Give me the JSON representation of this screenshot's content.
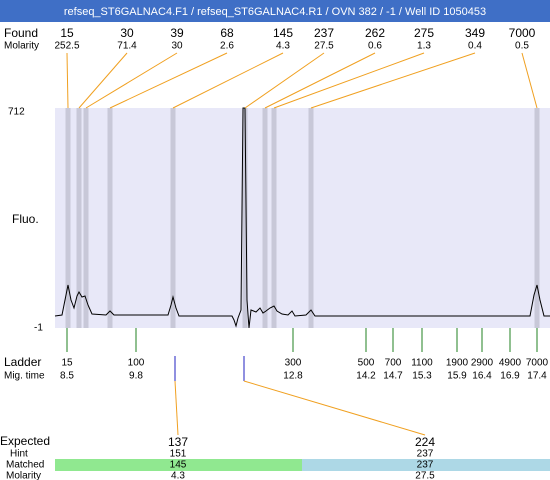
{
  "header": {
    "title": "refseq_ST6GALNAC4.F1 / refseq_ST6GALNAC4.R1 / OVN 382 / -1 / Well ID 1050453"
  },
  "found": {
    "label": "Found",
    "molarity_label": "Molarity",
    "peaks": [
      {
        "size": 15,
        "molarity": 252.5
      },
      {
        "size": 30,
        "molarity": 71.4
      },
      {
        "size": 39,
        "molarity": 30
      },
      {
        "size": 68,
        "molarity": 2.6
      },
      {
        "size": 145,
        "molarity": 4.3
      },
      {
        "size": 237,
        "molarity": 27.5
      },
      {
        "size": 262,
        "molarity": 0.6
      },
      {
        "size": 275,
        "molarity": 1.3
      },
      {
        "size": 349,
        "molarity": 0.4
      },
      {
        "size": 7000,
        "molarity": 0.5
      }
    ]
  },
  "plot": {
    "y_label": "Fluo.",
    "y_max": 712,
    "y_min": -1
  },
  "ladder": {
    "label": "Ladder",
    "mig_label": "Mig. time",
    "items": [
      {
        "size": 15,
        "mig": 8.5
      },
      {
        "size": 100,
        "mig": 9.8
      },
      {
        "size": 300,
        "mig": 12.8
      },
      {
        "size": 500,
        "mig": 14.2
      },
      {
        "size": 700,
        "mig": 14.7
      },
      {
        "size": 1100,
        "mig": 15.3
      },
      {
        "size": 1900,
        "mig": 15.9
      },
      {
        "size": 2900,
        "mig": 16.4
      },
      {
        "size": 4900,
        "mig": 16.9
      },
      {
        "size": 7000,
        "mig": 17.4
      }
    ]
  },
  "expected": {
    "label": "Expected",
    "hint_label": "Hint",
    "matched_label": "Matched",
    "molarity_label": "Molarity",
    "items": [
      {
        "expected": 137,
        "hint": 151,
        "matched": 145,
        "molarity": 4.3
      },
      {
        "expected": 224,
        "hint": 237,
        "matched": 237,
        "molarity": 27.5
      }
    ]
  }
}
